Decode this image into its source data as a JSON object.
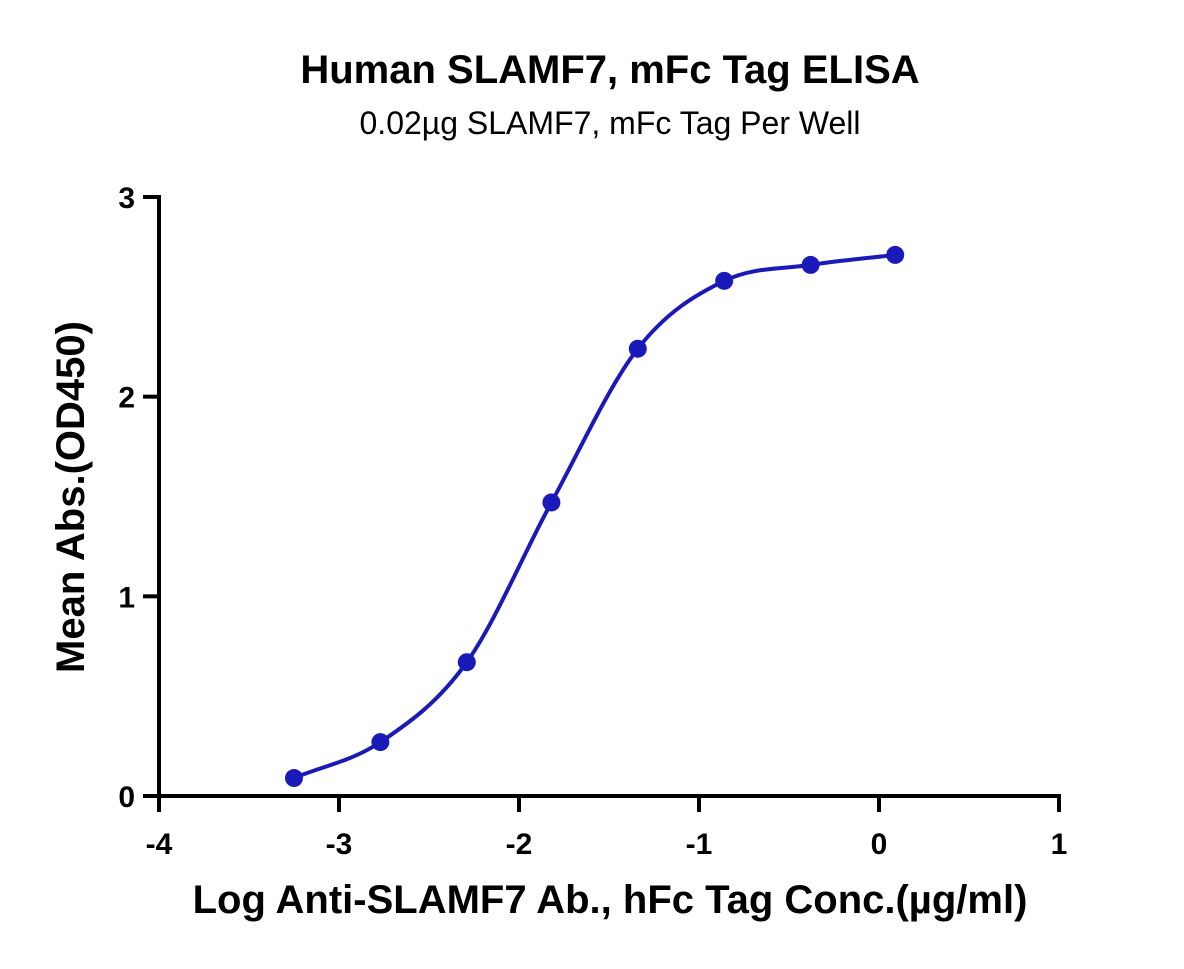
{
  "chart_data": {
    "type": "line",
    "title": "Human SLAMF7, mFc Tag ELISA",
    "subtitle": "0.02µg SLAMF7, mFc Tag Per Well",
    "xlabel": "Log Anti-SLAMF7 Ab., hFc Tag Conc.(µg/ml)",
    "ylabel": "Mean Abs.(OD450)",
    "xlim": [
      -4,
      1
    ],
    "ylim": [
      0,
      3
    ],
    "x_ticks": [
      -4,
      -3,
      -2,
      -1,
      0,
      1
    ],
    "y_ticks": [
      0,
      1,
      2,
      3
    ],
    "x_tick_labels": [
      "-4",
      "-3",
      "-2",
      "-1",
      "0",
      "1"
    ],
    "y_tick_labels": [
      "0",
      "1",
      "2",
      "3"
    ],
    "grid": false,
    "series": [
      {
        "color": "#1a1ab8",
        "x": [
          -3.25,
          -2.77,
          -2.29,
          -1.82,
          -1.34,
          -0.86,
          -0.38,
          0.09
        ],
        "y": [
          0.09,
          0.27,
          0.67,
          1.47,
          2.24,
          2.58,
          2.66,
          2.71
        ],
        "fit": "4PL"
      }
    ]
  }
}
